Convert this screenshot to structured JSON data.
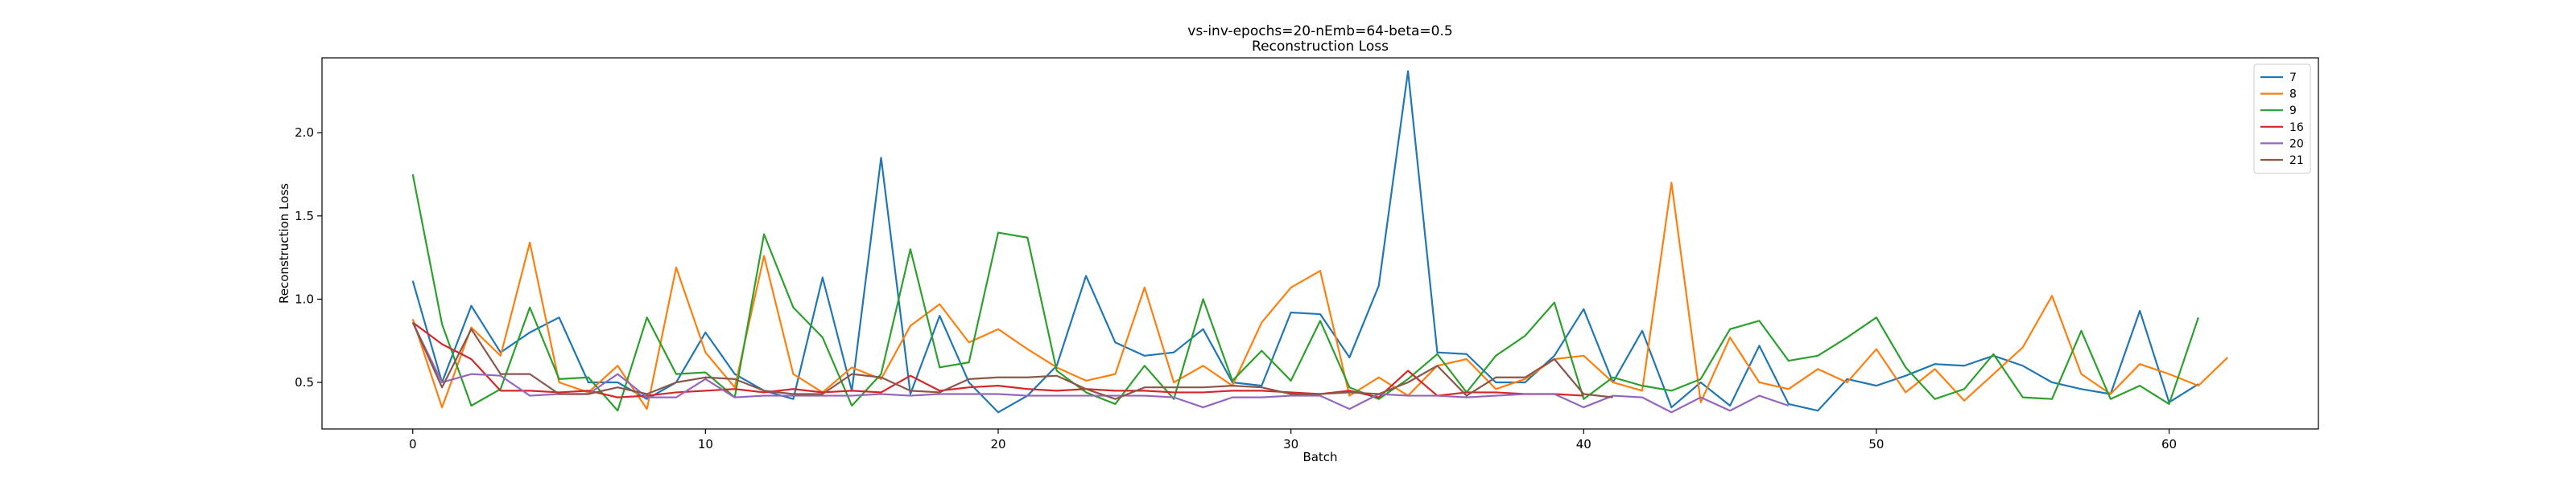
{
  "chart_data": {
    "type": "line",
    "title": "vs-inv-epochs=20-nEmb=64-beta=0.5",
    "subtitle": "Reconstruction Loss",
    "xlabel": "Batch",
    "ylabel": "Reconstruction Loss",
    "xlim": [
      -3.1,
      65.1
    ],
    "ylim": [
      0.22,
      2.45
    ],
    "xticks": [
      0,
      10,
      20,
      30,
      40,
      50,
      60
    ],
    "yticks": [
      0.5,
      1.0,
      1.5,
      2.0
    ],
    "ytick_labels": [
      "0.5",
      "1.0",
      "1.5",
      "2.0"
    ],
    "grid": false,
    "legend_position": "top-right",
    "series": [
      {
        "name": "7",
        "color": "#1f77b4",
        "values": [
          1.11,
          0.5,
          0.96,
          0.68,
          0.8,
          0.89,
          0.5,
          0.5,
          0.4,
          0.5,
          0.8,
          0.55,
          0.45,
          0.4,
          1.13,
          0.45,
          1.85,
          0.43,
          0.9,
          0.5,
          0.32,
          0.42,
          0.6,
          1.14,
          0.74,
          0.66,
          0.68,
          0.82,
          0.5,
          0.48,
          0.92,
          0.91,
          0.65,
          1.08,
          2.37,
          0.68,
          0.67,
          0.5,
          0.5,
          0.66,
          0.94,
          0.5,
          0.81,
          0.35,
          0.5,
          0.36,
          0.72,
          0.37,
          0.33,
          0.52,
          0.48,
          0.54,
          0.61,
          0.6,
          0.66,
          0.6,
          0.5,
          0.46,
          0.43,
          0.93,
          0.38,
          0.49
        ]
      },
      {
        "name": "8",
        "color": "#ff7f0e",
        "values": [
          0.88,
          0.35,
          0.83,
          0.66,
          1.34,
          0.5,
          0.44,
          0.6,
          0.34,
          1.19,
          0.68,
          0.47,
          1.26,
          0.55,
          0.44,
          0.59,
          0.52,
          0.84,
          0.97,
          0.74,
          0.82,
          0.7,
          0.59,
          0.51,
          0.55,
          1.07,
          0.5,
          0.6,
          0.48,
          0.86,
          1.07,
          1.17,
          0.42,
          0.53,
          0.42,
          0.6,
          0.64,
          0.46,
          0.52,
          0.64,
          0.66,
          0.5,
          0.45,
          1.7,
          0.38,
          0.77,
          0.5,
          0.46,
          0.58,
          0.5,
          0.7,
          0.44,
          0.58,
          0.39,
          0.55,
          0.71,
          1.02,
          0.55,
          0.43,
          0.61,
          0.55,
          0.48,
          0.65
        ]
      },
      {
        "name": "9",
        "color": "#2ca02c",
        "values": [
          1.75,
          0.85,
          0.36,
          0.46,
          0.95,
          0.52,
          0.53,
          0.33,
          0.89,
          0.55,
          0.56,
          0.41,
          1.39,
          0.95,
          0.77,
          0.36,
          0.55,
          1.3,
          0.59,
          0.62,
          1.4,
          1.37,
          0.57,
          0.44,
          0.37,
          0.6,
          0.4,
          1.0,
          0.51,
          0.69,
          0.51,
          0.87,
          0.47,
          0.4,
          0.52,
          0.67,
          0.44,
          0.66,
          0.78,
          0.98,
          0.4,
          0.53,
          0.48,
          0.45,
          0.52,
          0.82,
          0.87,
          0.63,
          0.66,
          0.77,
          0.89,
          0.59,
          0.4,
          0.46,
          0.67,
          0.41,
          0.4,
          0.81,
          0.4,
          0.48,
          0.37,
          0.89
        ]
      },
      {
        "name": "16",
        "color": "#d62728",
        "values": [
          0.86,
          0.73,
          0.64,
          0.45,
          0.45,
          0.44,
          0.45,
          0.41,
          0.42,
          0.44,
          0.45,
          0.46,
          0.44,
          0.46,
          0.44,
          0.45,
          0.44,
          0.54,
          0.45,
          0.47,
          0.48,
          0.46,
          0.45,
          0.46,
          0.45,
          0.45,
          0.44,
          0.44,
          0.45,
          0.45,
          0.44,
          0.43,
          0.45,
          0.41,
          0.57,
          0.42,
          0.44,
          0.44,
          0.43,
          0.43,
          0.42
        ]
      },
      {
        "name": "20",
        "color": "#9467bd",
        "values": [
          0.86,
          0.5,
          0.55,
          0.54,
          0.42,
          0.43,
          0.43,
          0.55,
          0.41,
          0.41,
          0.52,
          0.41,
          0.42,
          0.42,
          0.42,
          0.42,
          0.43,
          0.42,
          0.43,
          0.43,
          0.43,
          0.42,
          0.42,
          0.42,
          0.42,
          0.42,
          0.41,
          0.35,
          0.41,
          0.41,
          0.42,
          0.42,
          0.34,
          0.43,
          0.42,
          0.42,
          0.41,
          0.42,
          0.43,
          0.43,
          0.35,
          0.42,
          0.41,
          0.32,
          0.41,
          0.33,
          0.42,
          0.36
        ]
      },
      {
        "name": "21",
        "color": "#8c564b",
        "values": [
          0.86,
          0.47,
          0.82,
          0.55,
          0.55,
          0.43,
          0.43,
          0.47,
          0.43,
          0.5,
          0.53,
          0.52,
          0.45,
          0.43,
          0.43,
          0.55,
          0.53,
          0.45,
          0.44,
          0.52,
          0.53,
          0.53,
          0.54,
          0.46,
          0.4,
          0.47,
          0.47,
          0.47,
          0.48,
          0.47,
          0.43,
          0.43,
          0.44,
          0.43,
          0.5,
          0.6,
          0.42,
          0.53,
          0.53,
          0.64,
          0.43,
          0.41
        ]
      }
    ]
  }
}
